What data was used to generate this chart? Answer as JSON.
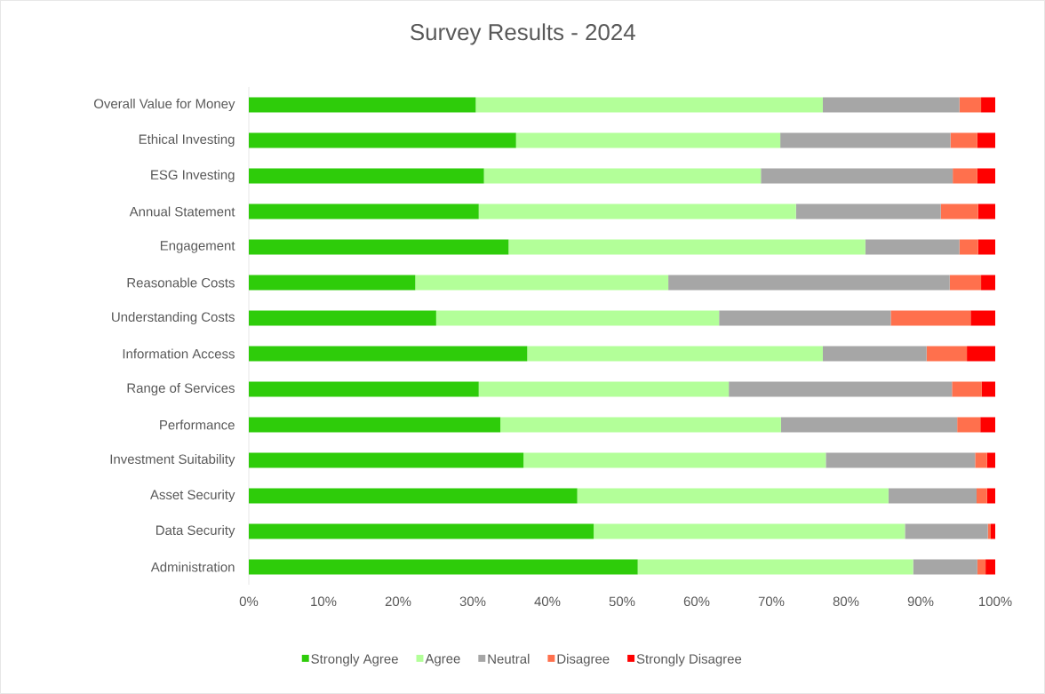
{
  "chart_data": {
    "type": "bar",
    "orientation": "horizontal",
    "stacked": true,
    "title": "Survey Results - 2024",
    "categories": [
      "Overall Value for Money",
      "Ethical Investing",
      "ESG Investing",
      "Annual Statement",
      "Engagement",
      "Reasonable Costs",
      "Understanding Costs",
      "Information Access",
      "Range of Services",
      "Performance",
      "Investment Suitability",
      "Asset Security",
      "Data Security",
      "Administration"
    ],
    "series": [
      {
        "name": "Strongly Agree",
        "color": "#2ecc0a",
        "values": [
          30.4,
          35.8,
          31.5,
          30.8,
          34.8,
          22.3,
          25.1,
          37.3,
          30.8,
          33.7,
          36.8,
          44.0,
          46.2,
          52.1
        ]
      },
      {
        "name": "Agree",
        "color": "#b3ff99",
        "values": [
          46.5,
          35.4,
          37.1,
          42.5,
          47.8,
          33.9,
          37.9,
          39.6,
          33.5,
          37.6,
          40.5,
          41.7,
          41.7,
          36.9
        ]
      },
      {
        "name": "Neutral",
        "color": "#a6a6a6",
        "values": [
          18.3,
          22.8,
          25.7,
          19.4,
          12.6,
          37.7,
          23.0,
          13.9,
          29.9,
          23.6,
          20.0,
          11.8,
          11.1,
          8.6
        ]
      },
      {
        "name": "Disagree",
        "color": "#ff704d",
        "values": [
          2.9,
          3.6,
          3.3,
          5.0,
          2.5,
          4.2,
          10.7,
          5.4,
          4.0,
          3.1,
          1.6,
          1.4,
          0.4,
          1.1
        ]
      },
      {
        "name": "Strongly Disagree",
        "color": "#ff0000",
        "values": [
          1.9,
          2.4,
          2.4,
          2.3,
          2.3,
          1.9,
          3.3,
          3.8,
          1.8,
          2.0,
          1.1,
          1.1,
          0.6,
          1.3
        ]
      }
    ],
    "xlim": [
      0,
      100
    ],
    "xticks": [
      {
        "value": 0,
        "label": "0%"
      },
      {
        "value": 10,
        "label": "10%"
      },
      {
        "value": 20,
        "label": "20%"
      },
      {
        "value": 30,
        "label": "30%"
      },
      {
        "value": 40,
        "label": "40%"
      },
      {
        "value": 50,
        "label": "50%"
      },
      {
        "value": 60,
        "label": "60%"
      },
      {
        "value": 70,
        "label": "70%"
      },
      {
        "value": 80,
        "label": "80%"
      },
      {
        "value": 90,
        "label": "90%"
      },
      {
        "value": 100,
        "label": "100%"
      }
    ],
    "legend": "bottom"
  }
}
